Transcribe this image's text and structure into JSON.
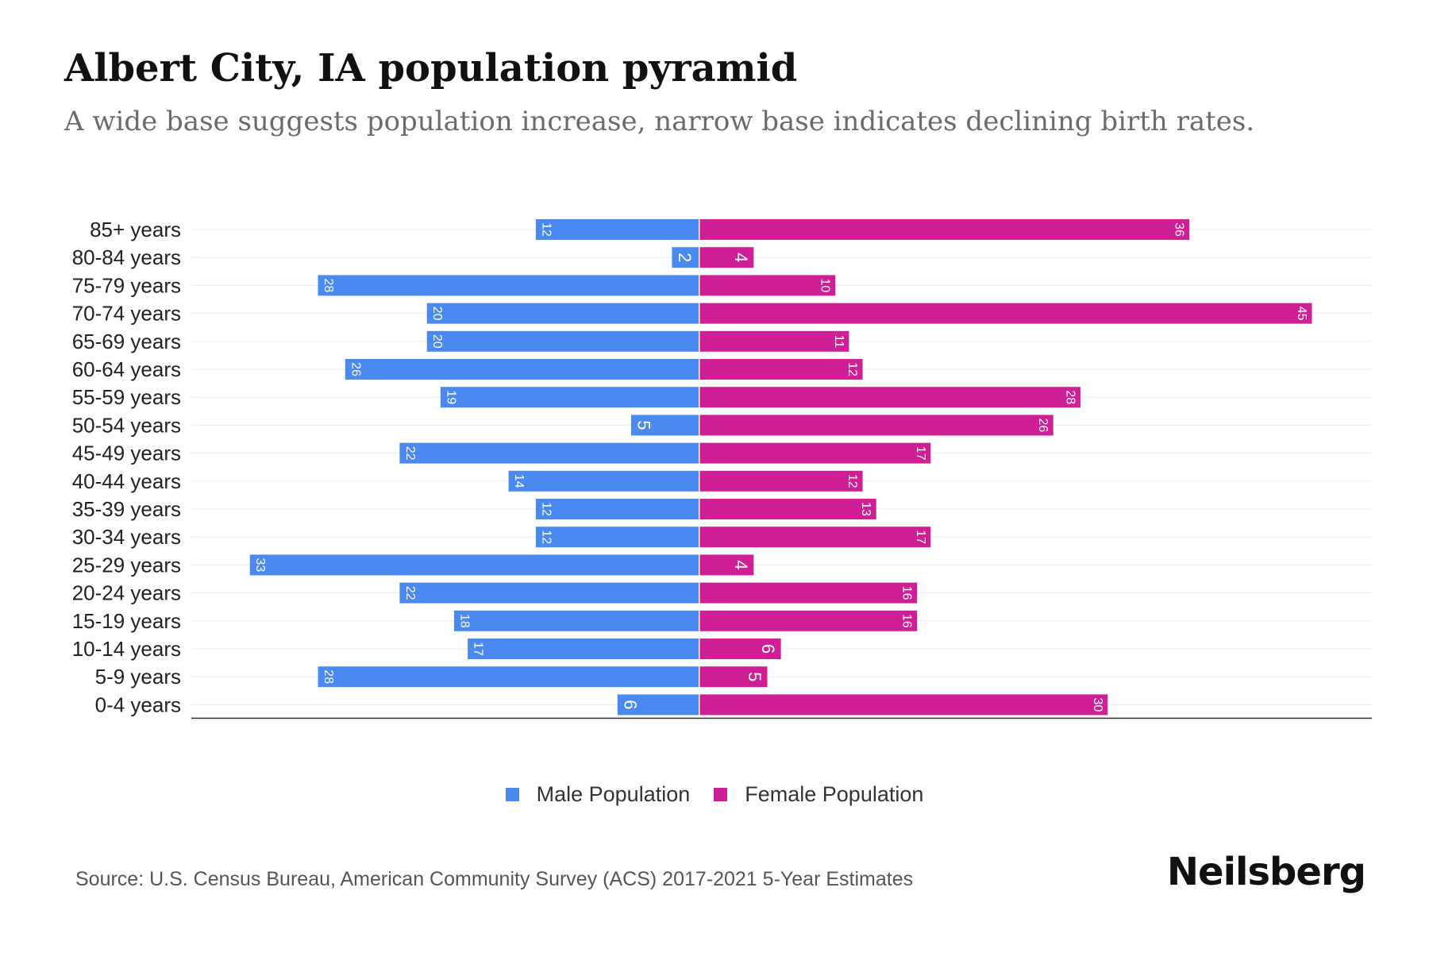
{
  "title": "Albert City, IA population pyramid",
  "subtitle": "A wide base suggests population increase, narrow base indicates declining birth rates.",
  "colors": {
    "male": "#4a8af0",
    "female": "#cf1f95"
  },
  "chart_data": {
    "type": "bar",
    "orientation": "horizontal-diverging",
    "categories": [
      "85+ years",
      "80-84 years",
      "75-79 years",
      "70-74 years",
      "65-69 years",
      "60-64 years",
      "55-59 years",
      "50-54 years",
      "45-49 years",
      "40-44 years",
      "35-39 years",
      "30-34 years",
      "25-29 years",
      "20-24 years",
      "15-19 years",
      "10-14 years",
      "5-9 years",
      "0-4 years"
    ],
    "series": [
      {
        "name": "Male Population",
        "values": [
          12,
          2,
          28,
          20,
          20,
          26,
          19,
          5,
          22,
          14,
          12,
          12,
          33,
          22,
          18,
          17,
          28,
          6
        ]
      },
      {
        "name": "Female Population",
        "values": [
          36,
          4,
          10,
          45,
          11,
          12,
          28,
          26,
          17,
          12,
          13,
          17,
          4,
          16,
          16,
          6,
          5,
          30
        ]
      }
    ],
    "xlim": [
      -37.3,
      49.4
    ],
    "grid": true,
    "legend": "bottom-center"
  },
  "legend": {
    "male_label": "Male Population",
    "female_label": "Female Population"
  },
  "source": "Source: U.S. Census Bureau, American Community Survey (ACS) 2017-2021 5-Year Estimates",
  "brand": "Neilsberg"
}
